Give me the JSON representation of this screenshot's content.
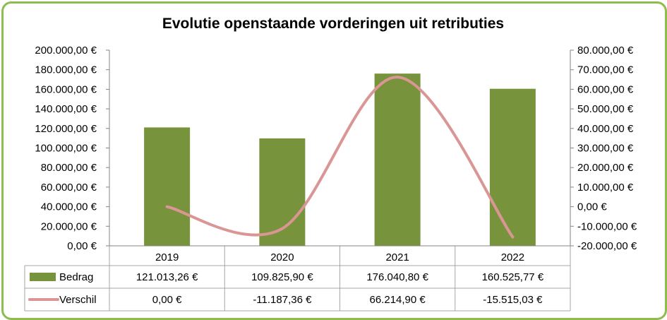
{
  "chart_data": {
    "type": "bar",
    "title": "Evolutie openstaande vorderingen uit retributies",
    "categories": [
      "2019",
      "2020",
      "2021",
      "2022"
    ],
    "series": [
      {
        "name": "Bedrag",
        "kind": "bar",
        "axis": "left",
        "color": "#77933c",
        "values": [
          121013.26,
          109825.9,
          176040.8,
          160525.77
        ],
        "labels": [
          "121.013,26 €",
          "109.825,90 €",
          "176.040,80 €",
          "160.525,77 €"
        ]
      },
      {
        "name": "Verschil",
        "kind": "line",
        "smooth": true,
        "axis": "right",
        "color": "#d99694",
        "values": [
          0.0,
          -11187.36,
          66214.9,
          -15515.03
        ],
        "labels": [
          "0,00 €",
          "-11.187,36 €",
          "66.214,90 €",
          "-15.515,03 €"
        ]
      }
    ],
    "y_left": {
      "min": 0,
      "max": 200000,
      "step": 20000,
      "ticks": [
        "0,00 €",
        "20.000,00 €",
        "40.000,00 €",
        "60.000,00 €",
        "80.000,00 €",
        "100.000,00 €",
        "120.000,00 €",
        "140.000,00 €",
        "160.000,00 €",
        "180.000,00 €",
        "200.000,00 €"
      ]
    },
    "y_right": {
      "min": -20000,
      "max": 80000,
      "step": 10000,
      "ticks": [
        "-20.000,00 €",
        "-10.000,00 €",
        "0,00 €",
        "10.000,00 €",
        "20.000,00 €",
        "30.000,00 €",
        "40.000,00 €",
        "50.000,00 €",
        "60.000,00 €",
        "70.000,00 €",
        "80.000,00 €"
      ]
    },
    "grid": false,
    "legend": "data-table"
  }
}
